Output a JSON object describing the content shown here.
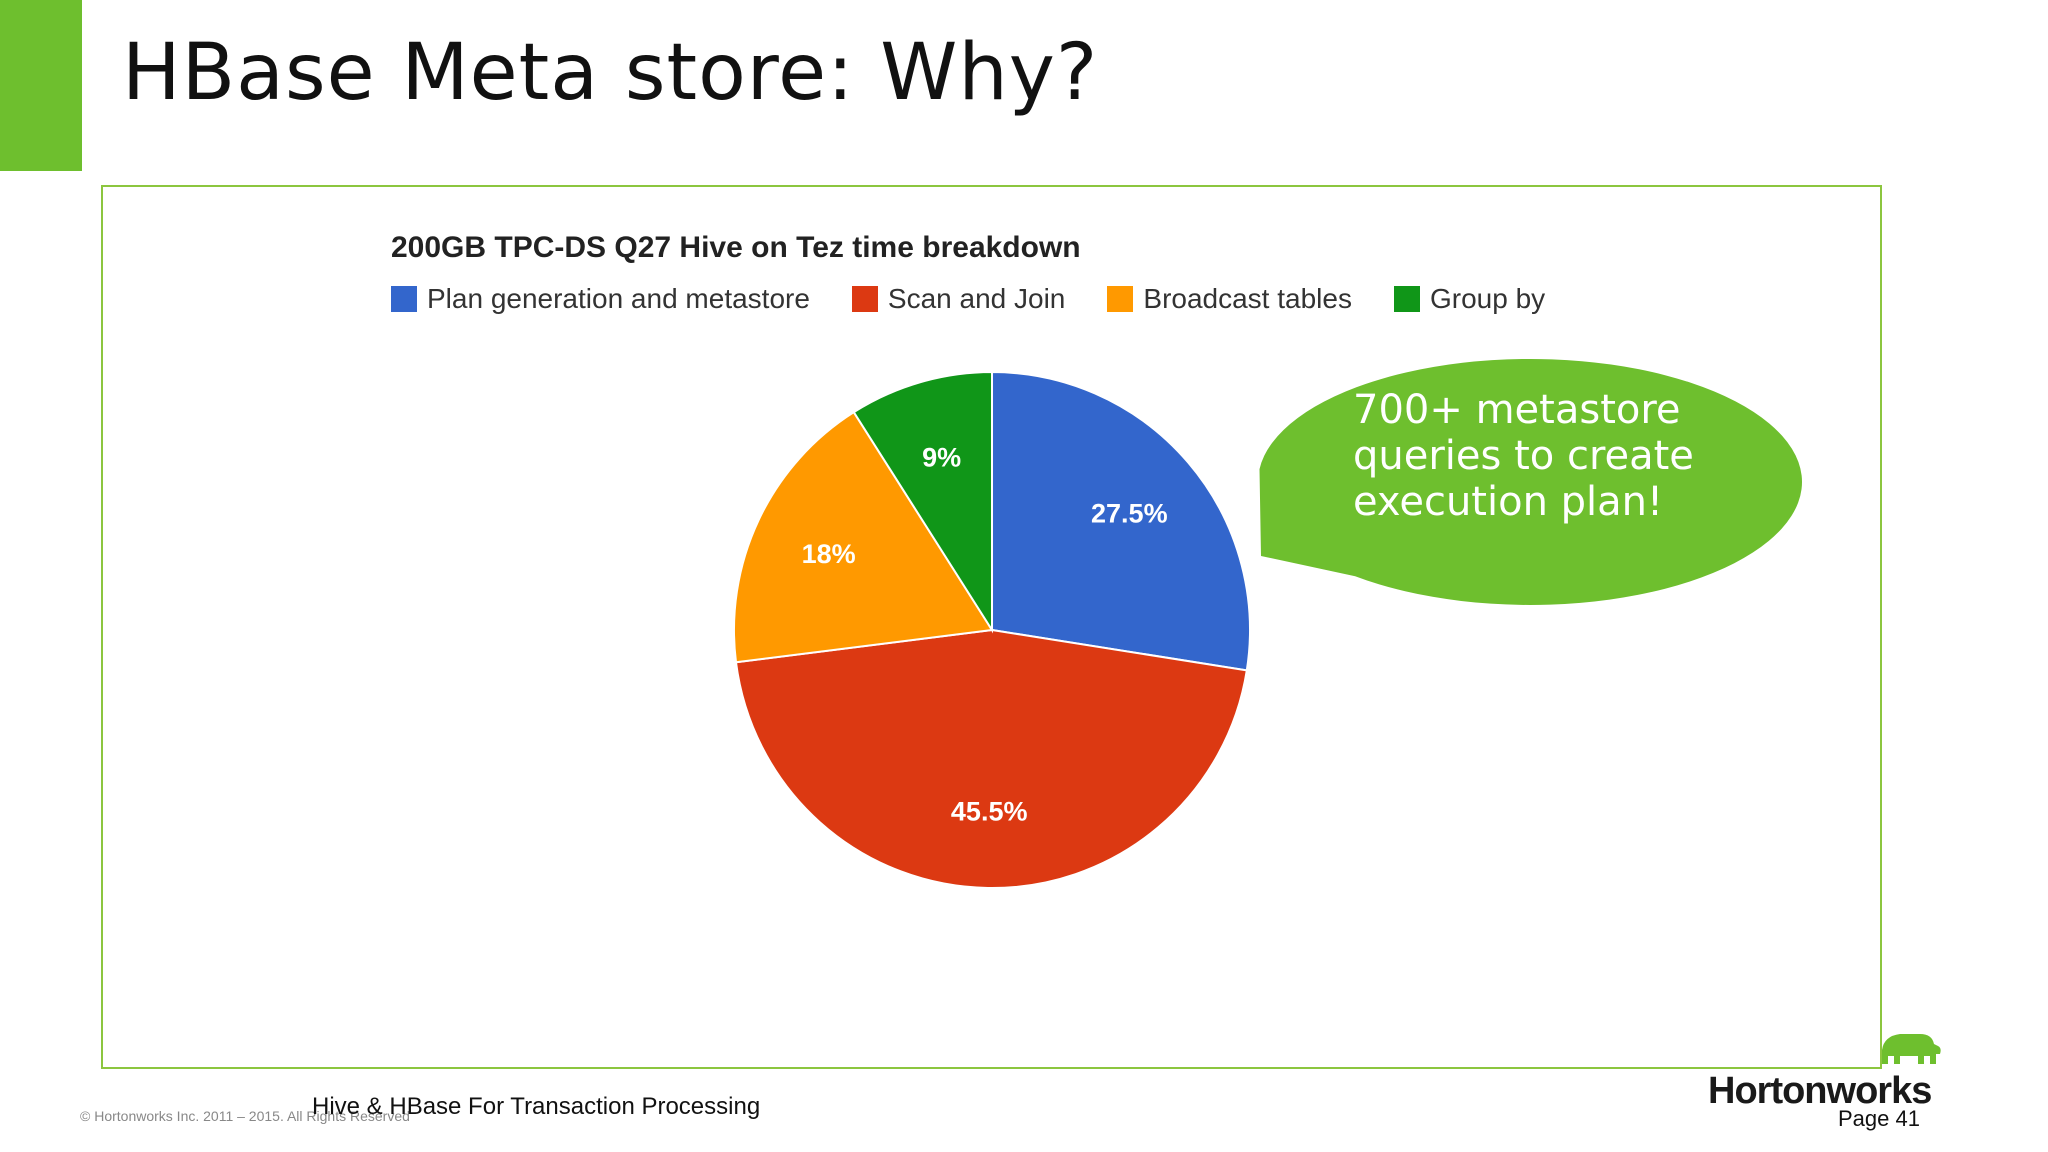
{
  "slide": {
    "title": "HBase Meta store: Why?",
    "accent_color": "#6ebf2e",
    "frame_color": "#8cc63f",
    "footer_copyright": "© Hortonworks Inc. 2011 – 2015. All Rights Reserved",
    "footer_subtitle": "Hive & HBase For Transaction Processing",
    "brand": "Hortonworks",
    "brand_icon": "elephant-icon",
    "page_label": "Page 41"
  },
  "chart_data": {
    "type": "pie",
    "title": "200GB TPC-DS Q27 Hive on Tez time breakdown",
    "legend_position": "top",
    "slices": [
      {
        "name": "Plan generation and metastore",
        "value": 27.5,
        "label": "27.5%",
        "color": "#3366cc"
      },
      {
        "name": "Scan and Join",
        "value": 45.5,
        "label": "45.5%",
        "color": "#dc3912"
      },
      {
        "name": "Broadcast tables",
        "value": 18,
        "label": "18%",
        "color": "#ff9900"
      },
      {
        "name": "Group by",
        "value": 9,
        "label": "9%",
        "color": "#109618"
      }
    ]
  },
  "callout": {
    "lines": [
      "700+ metastore",
      "queries to create",
      "execution plan!"
    ],
    "color": "#6ebf2e"
  }
}
